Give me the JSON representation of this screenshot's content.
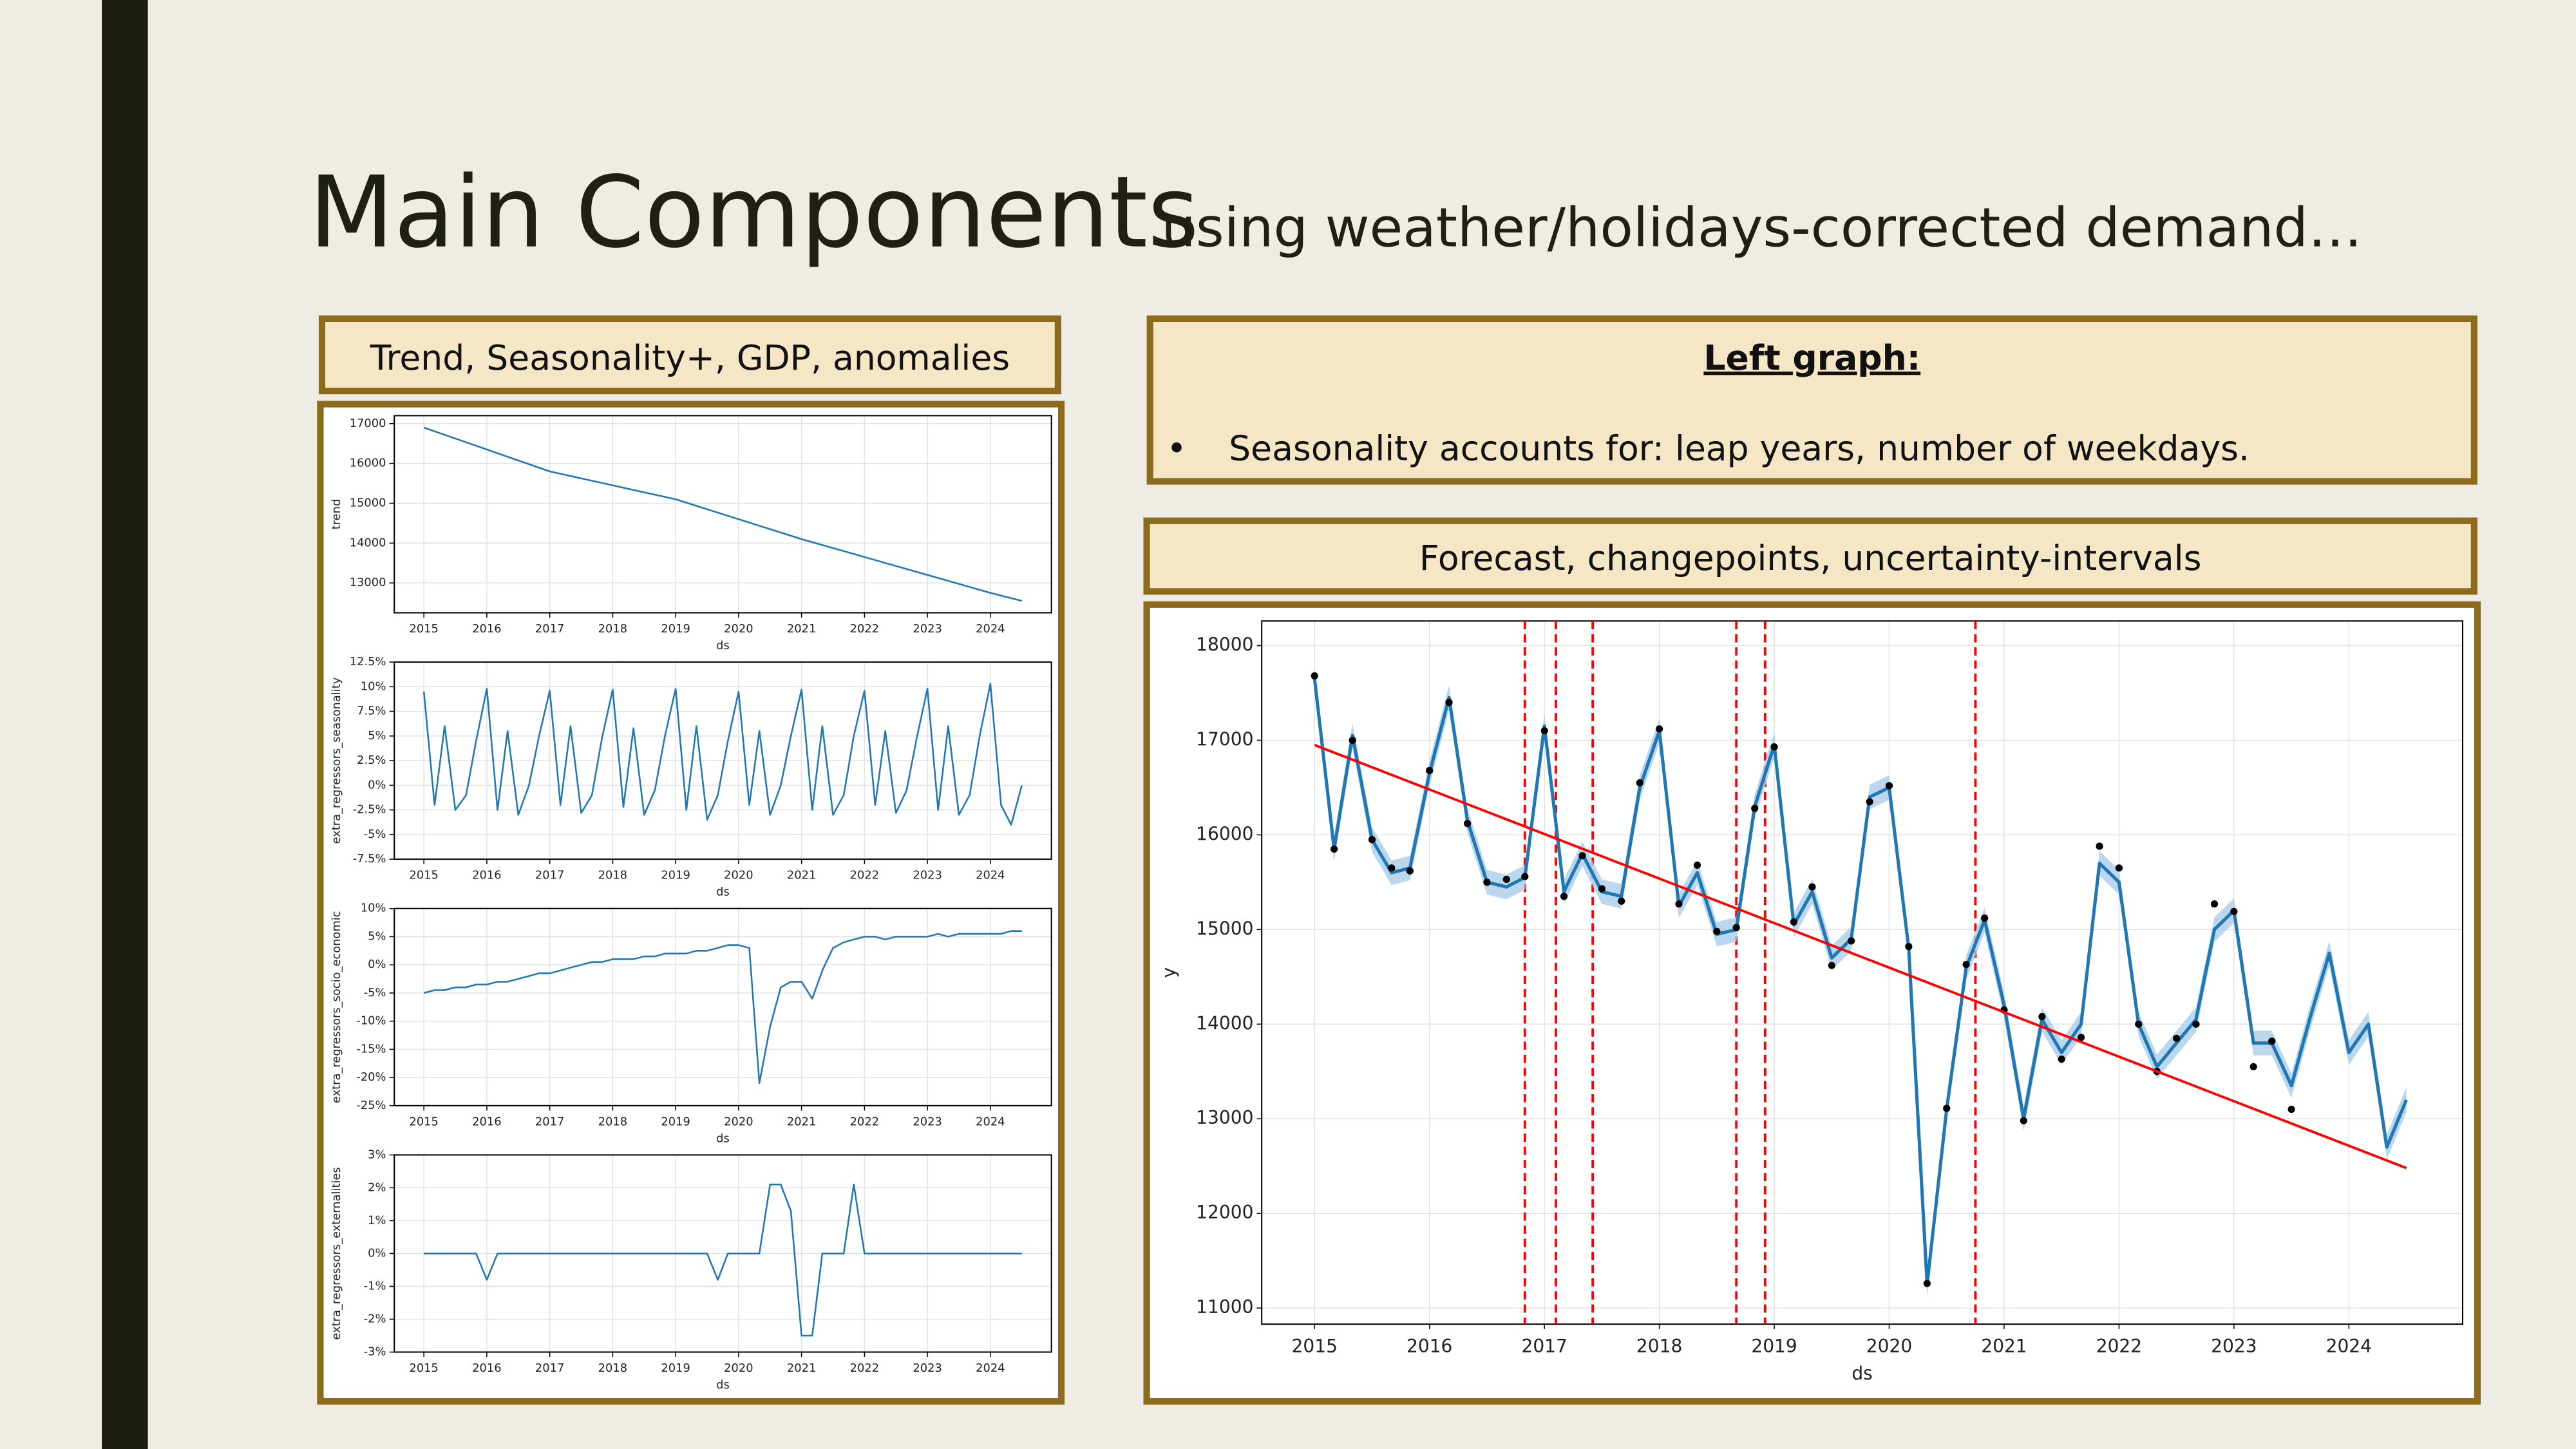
{
  "title": "Main Components",
  "subtitle": "using weather/holidays-corrected demand…",
  "left_box": "Trend, Seasonality+, GDP, anomalies",
  "right_note": {
    "heading": "Left graph:",
    "marker": "•",
    "bullet": "Seasonality accounts for: leap years, number of weekdays."
  },
  "forecast_box": "Forecast, changepoints, uncertainty-intervals",
  "chart_data": [
    {
      "type": "line",
      "xlabel": "ds",
      "ylabel": "trend",
      "grid": true,
      "x": [
        2015,
        2016,
        2017,
        2018,
        2019,
        2020,
        2021,
        2022,
        2023,
        2024,
        2024.5
      ],
      "series": [
        {
          "color": "#1f77b4",
          "values": [
            16900,
            16350,
            15800,
            15450,
            15100,
            14600,
            14100,
            13650,
            13200,
            12750,
            12550
          ]
        }
      ],
      "xlim": [
        2014.53,
        2024.97
      ],
      "ylim": [
        12250,
        17200
      ],
      "xticks": [
        2015,
        2016,
        2017,
        2018,
        2019,
        2020,
        2021,
        2022,
        2023,
        2024
      ],
      "yticks": [
        13000,
        14000,
        15000,
        16000,
        17000
      ]
    },
    {
      "type": "line",
      "xlabel": "ds",
      "ylabel": "extra_regressors_seasonality",
      "grid": true,
      "x": [
        2015,
        2015.17,
        2015.33,
        2015.5,
        2015.67,
        2015.83,
        2016,
        2016.17,
        2016.33,
        2016.5,
        2016.67,
        2016.83,
        2017,
        2017.17,
        2017.33,
        2017.5,
        2017.67,
        2017.83,
        2018,
        2018.17,
        2018.33,
        2018.5,
        2018.67,
        2018.83,
        2019,
        2019.17,
        2019.33,
        2019.5,
        2019.67,
        2019.83,
        2020,
        2020.17,
        2020.33,
        2020.5,
        2020.67,
        2020.83,
        2021,
        2021.17,
        2021.33,
        2021.5,
        2021.67,
        2021.83,
        2022,
        2022.17,
        2022.33,
        2022.5,
        2022.67,
        2022.83,
        2023,
        2023.17,
        2023.33,
        2023.5,
        2023.67,
        2023.83,
        2024,
        2024.17,
        2024.33,
        2024.5
      ],
      "series": [
        {
          "color": "#1f77b4",
          "values": [
            9.5,
            -2,
            6,
            -2.5,
            -1,
            4.5,
            9.8,
            -2.5,
            5.5,
            -3,
            0,
            5,
            9.6,
            -2,
            6,
            -2.8,
            -1,
            4.8,
            9.7,
            -2.2,
            5.8,
            -3,
            -0.5,
            5,
            9.8,
            -2.5,
            6,
            -3.5,
            -1,
            4.5,
            9.5,
            -2,
            5.5,
            -3,
            0,
            5,
            9.7,
            -2.5,
            6,
            -3,
            -1,
            5,
            9.6,
            -2,
            5.5,
            -2.8,
            -0.5,
            4.8,
            9.8,
            -2.5,
            6,
            -3,
            -1,
            5,
            10.3,
            -2,
            -4,
            0
          ]
        }
      ],
      "xlim": [
        2014.53,
        2024.97
      ],
      "ylim": [
        -7.5,
        12.5
      ],
      "xticks": [
        2015,
        2016,
        2017,
        2018,
        2019,
        2020,
        2021,
        2022,
        2023,
        2024
      ],
      "yticks": [
        {
          "value": -7.5,
          "label": "-7.5%"
        },
        {
          "value": -5,
          "label": "-5%"
        },
        {
          "value": -2.5,
          "label": "-2.5%"
        },
        {
          "value": 0,
          "label": "0%"
        },
        {
          "value": 2.5,
          "label": "2.5%"
        },
        {
          "value": 5,
          "label": "5%"
        },
        {
          "value": 7.5,
          "label": "7.5%"
        },
        {
          "value": 10,
          "label": "10%"
        },
        {
          "value": 12.5,
          "label": "12.5%"
        }
      ]
    },
    {
      "type": "line",
      "xlabel": "ds",
      "ylabel": "extra_regressors_socio_economic",
      "grid": true,
      "x": [
        2015,
        2015.17,
        2015.33,
        2015.5,
        2015.67,
        2015.83,
        2016,
        2016.17,
        2016.33,
        2016.5,
        2016.67,
        2016.83,
        2017,
        2017.17,
        2017.33,
        2017.5,
        2017.67,
        2017.83,
        2018,
        2018.17,
        2018.33,
        2018.5,
        2018.67,
        2018.83,
        2019,
        2019.17,
        2019.33,
        2019.5,
        2019.67,
        2019.83,
        2020,
        2020.17,
        2020.33,
        2020.5,
        2020.67,
        2020.83,
        2021,
        2021.17,
        2021.33,
        2021.5,
        2021.67,
        2021.83,
        2022,
        2022.17,
        2022.33,
        2022.5,
        2022.67,
        2022.83,
        2023,
        2023.17,
        2023.33,
        2023.5,
        2023.67,
        2023.83,
        2024,
        2024.17,
        2024.33,
        2024.5
      ],
      "series": [
        {
          "color": "#1f77b4",
          "values": [
            -5,
            -4.5,
            -4.5,
            -4,
            -4,
            -3.5,
            -3.5,
            -3,
            -3,
            -2.5,
            -2,
            -1.5,
            -1.5,
            -1,
            -0.5,
            0,
            0.5,
            0.5,
            1,
            1,
            1,
            1.5,
            1.5,
            2,
            2,
            2,
            2.5,
            2.5,
            3,
            3.5,
            3.5,
            3,
            -21,
            -11,
            -4,
            -3,
            -3,
            -6,
            -1,
            3,
            4,
            4.5,
            5,
            5,
            4.5,
            5,
            5,
            5,
            5,
            5.5,
            5,
            5.5,
            5.5,
            5.5,
            5.5,
            5.5,
            6,
            6
          ]
        }
      ],
      "xlim": [
        2014.53,
        2024.97
      ],
      "ylim": [
        -25,
        10
      ],
      "xticks": [
        2015,
        2016,
        2017,
        2018,
        2019,
        2020,
        2021,
        2022,
        2023,
        2024
      ],
      "yticks": [
        {
          "value": -25,
          "label": "-25%"
        },
        {
          "value": -20,
          "label": "-20%"
        },
        {
          "value": -15,
          "label": "-15%"
        },
        {
          "value": -10,
          "label": "-10%"
        },
        {
          "value": -5,
          "label": "-5%"
        },
        {
          "value": 0,
          "label": "0%"
        },
        {
          "value": 5,
          "label": "5%"
        },
        {
          "value": 10,
          "label": "10%"
        }
      ]
    },
    {
      "type": "line",
      "xlabel": "ds",
      "ylabel": "extra_regressors_externalities",
      "grid": true,
      "x": [
        2015,
        2015.17,
        2015.33,
        2015.5,
        2015.67,
        2015.83,
        2016,
        2016.17,
        2016.33,
        2016.5,
        2016.67,
        2016.83,
        2017,
        2017.17,
        2017.33,
        2017.5,
        2017.67,
        2017.83,
        2018,
        2018.17,
        2018.33,
        2018.5,
        2018.67,
        2018.83,
        2019,
        2019.17,
        2019.33,
        2019.5,
        2019.67,
        2019.83,
        2020,
        2020.17,
        2020.33,
        2020.5,
        2020.67,
        2020.83,
        2021,
        2021.17,
        2021.33,
        2021.5,
        2021.67,
        2021.83,
        2022,
        2022.17,
        2022.33,
        2022.5,
        2022.67,
        2022.83,
        2023,
        2023.17,
        2023.33,
        2023.5,
        2023.67,
        2023.83,
        2024,
        2024.17,
        2024.33,
        2024.5
      ],
      "series": [
        {
          "color": "#1f77b4",
          "values": [
            0,
            0,
            0,
            0,
            0,
            0,
            -0.8,
            0,
            0,
            0,
            0,
            0,
            0,
            0,
            0,
            0,
            0,
            0,
            0,
            0,
            0,
            0,
            0,
            0,
            0,
            0,
            0,
            0,
            -0.8,
            0,
            0,
            0,
            0,
            2.1,
            2.1,
            1.3,
            -2.5,
            -2.5,
            0,
            0,
            0,
            2.1,
            0,
            0,
            0,
            0,
            0,
            0,
            0,
            0,
            0,
            0,
            0,
            0,
            0,
            0,
            0,
            0
          ]
        }
      ],
      "xlim": [
        2014.53,
        2024.97
      ],
      "ylim": [
        -3,
        3
      ],
      "xticks": [
        2015,
        2016,
        2017,
        2018,
        2019,
        2020,
        2021,
        2022,
        2023,
        2024
      ],
      "yticks": [
        {
          "value": -3,
          "label": "-3%"
        },
        {
          "value": -2,
          "label": "-2%"
        },
        {
          "value": -1,
          "label": "-1%"
        },
        {
          "value": 0,
          "label": "0%"
        },
        {
          "value": 1,
          "label": "1%"
        },
        {
          "value": 2,
          "label": "2%"
        },
        {
          "value": 3,
          "label": "3%"
        }
      ]
    },
    {
      "type": "line",
      "xlabel": "ds",
      "ylabel": "y",
      "grid": true,
      "x": [
        2015,
        2015.17,
        2015.33,
        2015.5,
        2015.67,
        2015.83,
        2016,
        2016.17,
        2016.33,
        2016.5,
        2016.67,
        2016.83,
        2017,
        2017.17,
        2017.33,
        2017.5,
        2017.67,
        2017.83,
        2018,
        2018.17,
        2018.33,
        2018.5,
        2018.67,
        2018.83,
        2019,
        2019.17,
        2019.33,
        2019.5,
        2019.67,
        2019.83,
        2020,
        2020.17,
        2020.33,
        2020.5,
        2020.67,
        2020.83,
        2021,
        2021.17,
        2021.33,
        2021.5,
        2021.67,
        2021.83,
        2022,
        2022.17,
        2022.33,
        2022.5,
        2022.67,
        2022.83,
        2023,
        2023.17,
        2023.33,
        2023.5,
        2023.67,
        2023.83,
        2024,
        2024.17,
        2024.33,
        2024.5
      ],
      "band": {
        "color": "#a9cde9",
        "lower": [
          17520,
          15720,
          16920,
          15820,
          15470,
          15520,
          16520,
          17320,
          16020,
          15370,
          15320,
          15420,
          17020,
          15270,
          15670,
          15270,
          15220,
          16370,
          16970,
          15120,
          15470,
          14820,
          14870,
          16170,
          16820,
          14920,
          15270,
          14570,
          14770,
          16270,
          16370,
          14670,
          11120,
          12970,
          14470,
          14970,
          14070,
          12870,
          13920,
          13570,
          13870,
          15570,
          15370,
          13870,
          13420,
          13670,
          13920,
          14870,
          15070,
          13670,
          13670,
          13220,
          13970,
          14620,
          13570,
          13870,
          12570,
          13070
        ],
        "upper": [
          17780,
          15980,
          17180,
          16080,
          15730,
          15780,
          16780,
          17580,
          16280,
          15630,
          15580,
          15680,
          17280,
          15530,
          15930,
          15530,
          15480,
          16630,
          17230,
          15380,
          15730,
          15080,
          15130,
          16430,
          17080,
          15180,
          15530,
          14830,
          15030,
          16530,
          16630,
          14930,
          11380,
          13230,
          14730,
          15230,
          14330,
          13130,
          14180,
          13830,
          14130,
          15830,
          15630,
          14130,
          13680,
          13930,
          14180,
          15130,
          15330,
          13930,
          13930,
          13480,
          14230,
          14880,
          13830,
          14130,
          12830,
          13330
        ]
      },
      "series": [
        {
          "color": "#1f77b4",
          "style": "line",
          "values": [
            17650,
            15850,
            17050,
            15950,
            15600,
            15650,
            16650,
            17450,
            16150,
            15500,
            15450,
            15550,
            17150,
            15400,
            15800,
            15400,
            15350,
            16500,
            17100,
            15250,
            15600,
            14950,
            15000,
            16300,
            16950,
            15050,
            15400,
            14700,
            14900,
            16400,
            16500,
            14800,
            11250,
            13100,
            14600,
            15100,
            14200,
            13000,
            14050,
            13700,
            14000,
            15700,
            15500,
            14000,
            13550,
            13800,
            14050,
            15000,
            15200,
            13800,
            13800,
            13350,
            14100,
            14750,
            13700,
            14000,
            12700,
            13200
          ]
        },
        {
          "color": "#000000",
          "style": "points",
          "values": [
            17680,
            15850,
            17000,
            15950,
            15650,
            15620,
            16680,
            17400,
            16120,
            15500,
            15530,
            15560,
            17100,
            15350,
            15780,
            15430,
            15300,
            16550,
            17120,
            15270,
            15680,
            14980,
            15020,
            16280,
            16930,
            15080,
            15450,
            14620,
            14880,
            16350,
            16520,
            14820,
            11260,
            13110,
            14630,
            15120,
            14150,
            12980,
            14080,
            13630,
            13860,
            15880,
            15650,
            14000,
            13500,
            13850,
            14000,
            15270,
            15190,
            13550,
            13820,
            13100,
            null,
            null,
            null,
            null,
            null,
            null
          ]
        }
      ],
      "trend": {
        "color": "#ff0000",
        "x": [
          2015,
          2024.5
        ],
        "values": [
          16950,
          12480
        ]
      },
      "changepoints": {
        "color": "#ff0000",
        "x": [
          2016.83,
          2017.1,
          2017.42,
          2018.67,
          2018.92,
          2020.75
        ]
      },
      "xlim": [
        2014.54,
        2024.99
      ],
      "ylim": [
        10830,
        18260
      ],
      "xticks": [
        2015,
        2016,
        2017,
        2018,
        2019,
        2020,
        2021,
        2022,
        2023,
        2024
      ],
      "yticks": [
        11000,
        12000,
        13000,
        14000,
        15000,
        16000,
        17000,
        18000
      ]
    }
  ]
}
